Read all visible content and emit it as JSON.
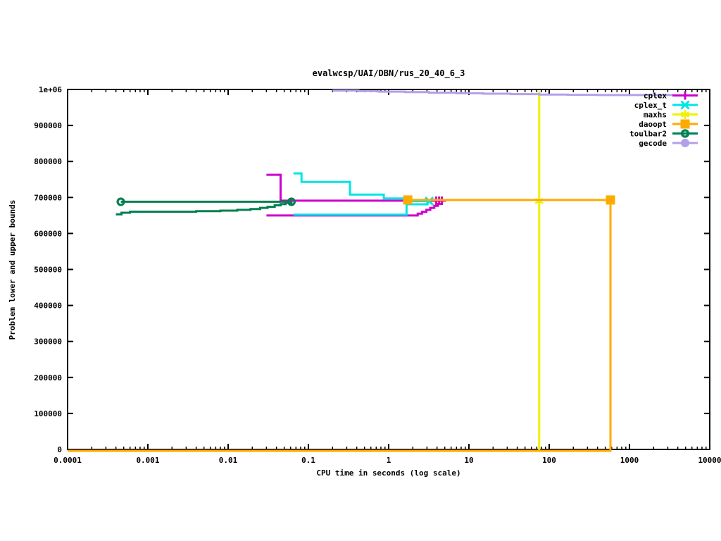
{
  "chart_data": {
    "type": "line",
    "title": "evalwcsp/UAI/DBN/rus_20_40_6_3",
    "xlabel": "CPU time in seconds (log scale)",
    "ylabel": "Problem lower and upper bounds",
    "x_scale": "log",
    "xlim": [
      0.0001,
      10000
    ],
    "ylim": [
      0,
      1000000
    ],
    "grid": false,
    "legend_position": "top-right-inside",
    "x_ticks": [
      [
        0.0001,
        "0.0001"
      ],
      [
        0.001,
        "0.001"
      ],
      [
        0.01,
        "0.01"
      ],
      [
        0.1,
        "0.1"
      ],
      [
        1,
        "1"
      ],
      [
        10,
        "10"
      ],
      [
        100,
        "100"
      ],
      [
        1000,
        "1000"
      ],
      [
        10000,
        "10000"
      ]
    ],
    "y_ticks": [
      [
        0,
        "0"
      ],
      [
        100000,
        "100000"
      ],
      [
        200000,
        "200000"
      ],
      [
        300000,
        "300000"
      ],
      [
        400000,
        "400000"
      ],
      [
        500000,
        "500000"
      ],
      [
        600000,
        "600000"
      ],
      [
        700000,
        "700000"
      ],
      [
        800000,
        "800000"
      ],
      [
        900000,
        "900000"
      ],
      [
        1000000,
        "1e+06"
      ]
    ],
    "series": [
      {
        "name": "cplex",
        "color": "#cc00cc",
        "marker": "plus",
        "lines": [
          [
            [
              0.03,
              763000
            ],
            [
              0.045,
              763000
            ],
            [
              0.045,
              691000
            ],
            [
              4.6,
              691000
            ]
          ],
          [
            [
              0.03,
              650000
            ],
            [
              2.05,
              650000
            ],
            [
              2.3,
              655000
            ],
            [
              2.6,
              660000
            ],
            [
              2.95,
              665500
            ],
            [
              3.3,
              671000
            ],
            [
              3.7,
              676500
            ],
            [
              4.1,
              682000
            ],
            [
              4.6,
              691000
            ]
          ]
        ],
        "points": [
          [
            3.9,
            691000
          ],
          [
            4.25,
            691000
          ],
          [
            4.6,
            691000
          ]
        ]
      },
      {
        "name": "cplex_t",
        "color": "#00e5e5",
        "marker": "cross",
        "lines": [
          [
            [
              0.065,
              767000
            ],
            [
              0.082,
              767000
            ],
            [
              0.082,
              743000
            ],
            [
              0.33,
              743000
            ],
            [
              0.33,
              708000
            ],
            [
              0.87,
              708000
            ],
            [
              0.87,
              697000
            ],
            [
              1.55,
              697000
            ],
            [
              1.55,
              689800
            ],
            [
              3.2,
              689800
            ]
          ],
          [
            [
              0.065,
              652000
            ],
            [
              1.67,
              652000
            ],
            [
              1.67,
              681000
            ],
            [
              3.05,
              681000
            ],
            [
              3.05,
              689800
            ],
            [
              3.2,
              689800
            ]
          ]
        ],
        "points": [
          [
            3.2,
            689800
          ]
        ]
      },
      {
        "name": "maxhs",
        "color": "#f0f000",
        "marker": "star",
        "lines": [
          [
            [
              0.0001,
              0
            ],
            [
              75,
              0
            ],
            [
              75,
              995000
            ]
          ]
        ],
        "points": [
          [
            75,
            690000
          ]
        ]
      },
      {
        "name": "daoopt",
        "color": "#ffaa00",
        "marker": "square",
        "lines": [
          [
            [
              0.0001,
              0
            ],
            [
              580,
              0
            ],
            [
              580,
              693000
            ],
            [
              1.73,
              693000
            ]
          ]
        ],
        "points": [
          [
            1.73,
            693000
          ],
          [
            580,
            693000
          ]
        ]
      },
      {
        "name": "toulbar2",
        "color": "#008050",
        "marker": "circle-open",
        "lines": [
          [
            [
              0.00046,
              688000
            ],
            [
              0.0615,
              688000
            ]
          ],
          [
            [
              0.0004,
              653000
            ],
            [
              0.00047,
              657500
            ],
            [
              0.0006,
              660500
            ],
            [
              0.004,
              662000
            ],
            [
              0.008,
              663500
            ],
            [
              0.013,
              665500
            ],
            [
              0.019,
              668000
            ],
            [
              0.025,
              671000
            ],
            [
              0.031,
              674000
            ],
            [
              0.038,
              678000
            ],
            [
              0.045,
              681500
            ],
            [
              0.052,
              685000
            ],
            [
              0.0615,
              688000
            ]
          ]
        ],
        "points": [
          [
            0.00046,
            688000
          ],
          [
            0.0615,
            688000
          ]
        ]
      },
      {
        "name": "gecode",
        "color": "#b3a0e8",
        "marker": "circle-filled",
        "lines": [
          [
            [
              0.2,
              997000
            ],
            [
              0.42,
              995500
            ],
            [
              0.75,
              994000
            ],
            [
              1.6,
              992500
            ],
            [
              3.2,
              991000
            ],
            [
              7,
              989500
            ],
            [
              15,
              988200
            ],
            [
              33,
              987000
            ],
            [
              75,
              986000
            ],
            [
              170,
              985200
            ],
            [
              400,
              984600
            ],
            [
              3400,
              984000
            ]
          ]
        ],
        "points": []
      }
    ]
  }
}
